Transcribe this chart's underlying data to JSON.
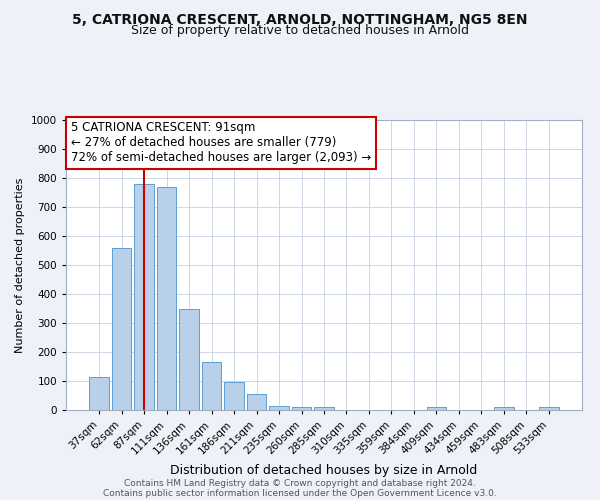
{
  "title_line1": "5, CATRIONA CRESCENT, ARNOLD, NOTTINGHAM, NG5 8EN",
  "title_line2": "Size of property relative to detached houses in Arnold",
  "xlabel": "Distribution of detached houses by size in Arnold",
  "ylabel": "Number of detached properties",
  "bar_labels": [
    "37sqm",
    "62sqm",
    "87sqm",
    "111sqm",
    "136sqm",
    "161sqm",
    "186sqm",
    "211sqm",
    "235sqm",
    "260sqm",
    "285sqm",
    "310sqm",
    "335sqm",
    "359sqm",
    "384sqm",
    "409sqm",
    "434sqm",
    "459sqm",
    "483sqm",
    "508sqm",
    "533sqm"
  ],
  "bar_values": [
    115,
    560,
    780,
    770,
    348,
    165,
    98,
    55,
    15,
    10,
    10,
    0,
    0,
    0,
    0,
    12,
    0,
    0,
    10,
    0,
    10
  ],
  "bar_color": "#b8d0ea",
  "bar_edge_color": "#5a9fd4",
  "vline_index": 2,
  "vline_color": "#cc0000",
  "ylim": [
    0,
    1000
  ],
  "yticks": [
    0,
    100,
    200,
    300,
    400,
    500,
    600,
    700,
    800,
    900,
    1000
  ],
  "annotation_title": "5 CATRIONA CRESCENT: 91sqm",
  "annotation_line1": "← 27% of detached houses are smaller (779)",
  "annotation_line2": "72% of semi-detached houses are larger (2,093) →",
  "footer_line1": "Contains HM Land Registry data © Crown copyright and database right 2024.",
  "footer_line2": "Contains public sector information licensed under the Open Government Licence v3.0.",
  "bg_color": "#eef2f8",
  "plot_bg_color": "#ffffff",
  "grid_color": "#c5d0e0",
  "title1_fontsize": 10,
  "title2_fontsize": 9,
  "ylabel_fontsize": 8,
  "xlabel_fontsize": 9,
  "tick_fontsize": 7.5,
  "annotation_fontsize": 8.5,
  "footer_fontsize": 6.5
}
